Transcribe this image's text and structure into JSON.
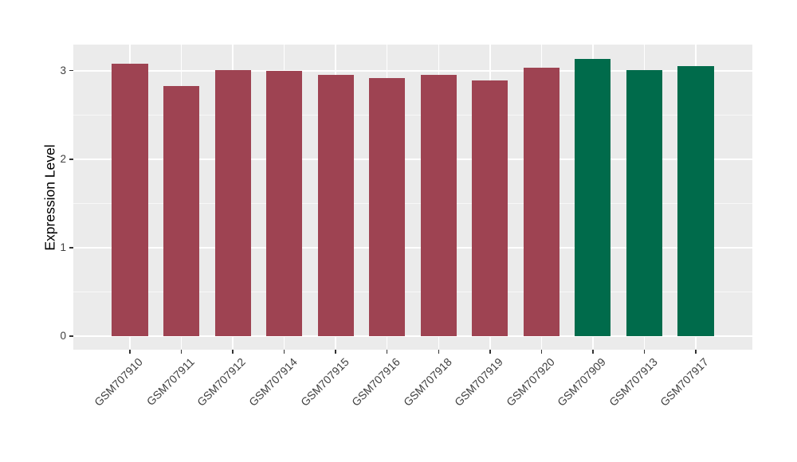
{
  "chart_data": {
    "type": "bar",
    "title": "",
    "xlabel": "",
    "ylabel": "Expression Level",
    "categories": [
      "GSM707910",
      "GSM707911",
      "GSM707912",
      "GSM707914",
      "GSM707915",
      "GSM707916",
      "GSM707918",
      "GSM707919",
      "GSM707920",
      "GSM707909",
      "GSM707913",
      "GSM707917"
    ],
    "values": [
      3.08,
      2.83,
      3.01,
      3.0,
      2.95,
      2.92,
      2.95,
      2.89,
      3.03,
      3.13,
      3.01,
      3.05
    ],
    "bar_colors": [
      "#9E4352",
      "#9E4352",
      "#9E4352",
      "#9E4352",
      "#9E4352",
      "#9E4352",
      "#9E4352",
      "#9E4352",
      "#9E4352",
      "#006B4B",
      "#006B4B",
      "#006B4B"
    ],
    "group_palette": {
      "group_red": "#9E4352",
      "group_green": "#006B4B"
    },
    "y_ticks": [
      "0",
      "1",
      "2",
      "3"
    ],
    "y_tick_values": [
      0,
      1,
      2,
      3
    ],
    "y_minor_tick_values": [
      0.5,
      1.5,
      2.5
    ],
    "ylim": [
      -0.155,
      3.295
    ],
    "x_tick_rotation_deg": 45,
    "grid": "on",
    "legend": "none",
    "panel_background": "#EBEBEB",
    "grid_color": "#FFFFFF",
    "tick_color": "#333333",
    "axis_text_color": "#404040",
    "axis_title_color": "#000000"
  }
}
